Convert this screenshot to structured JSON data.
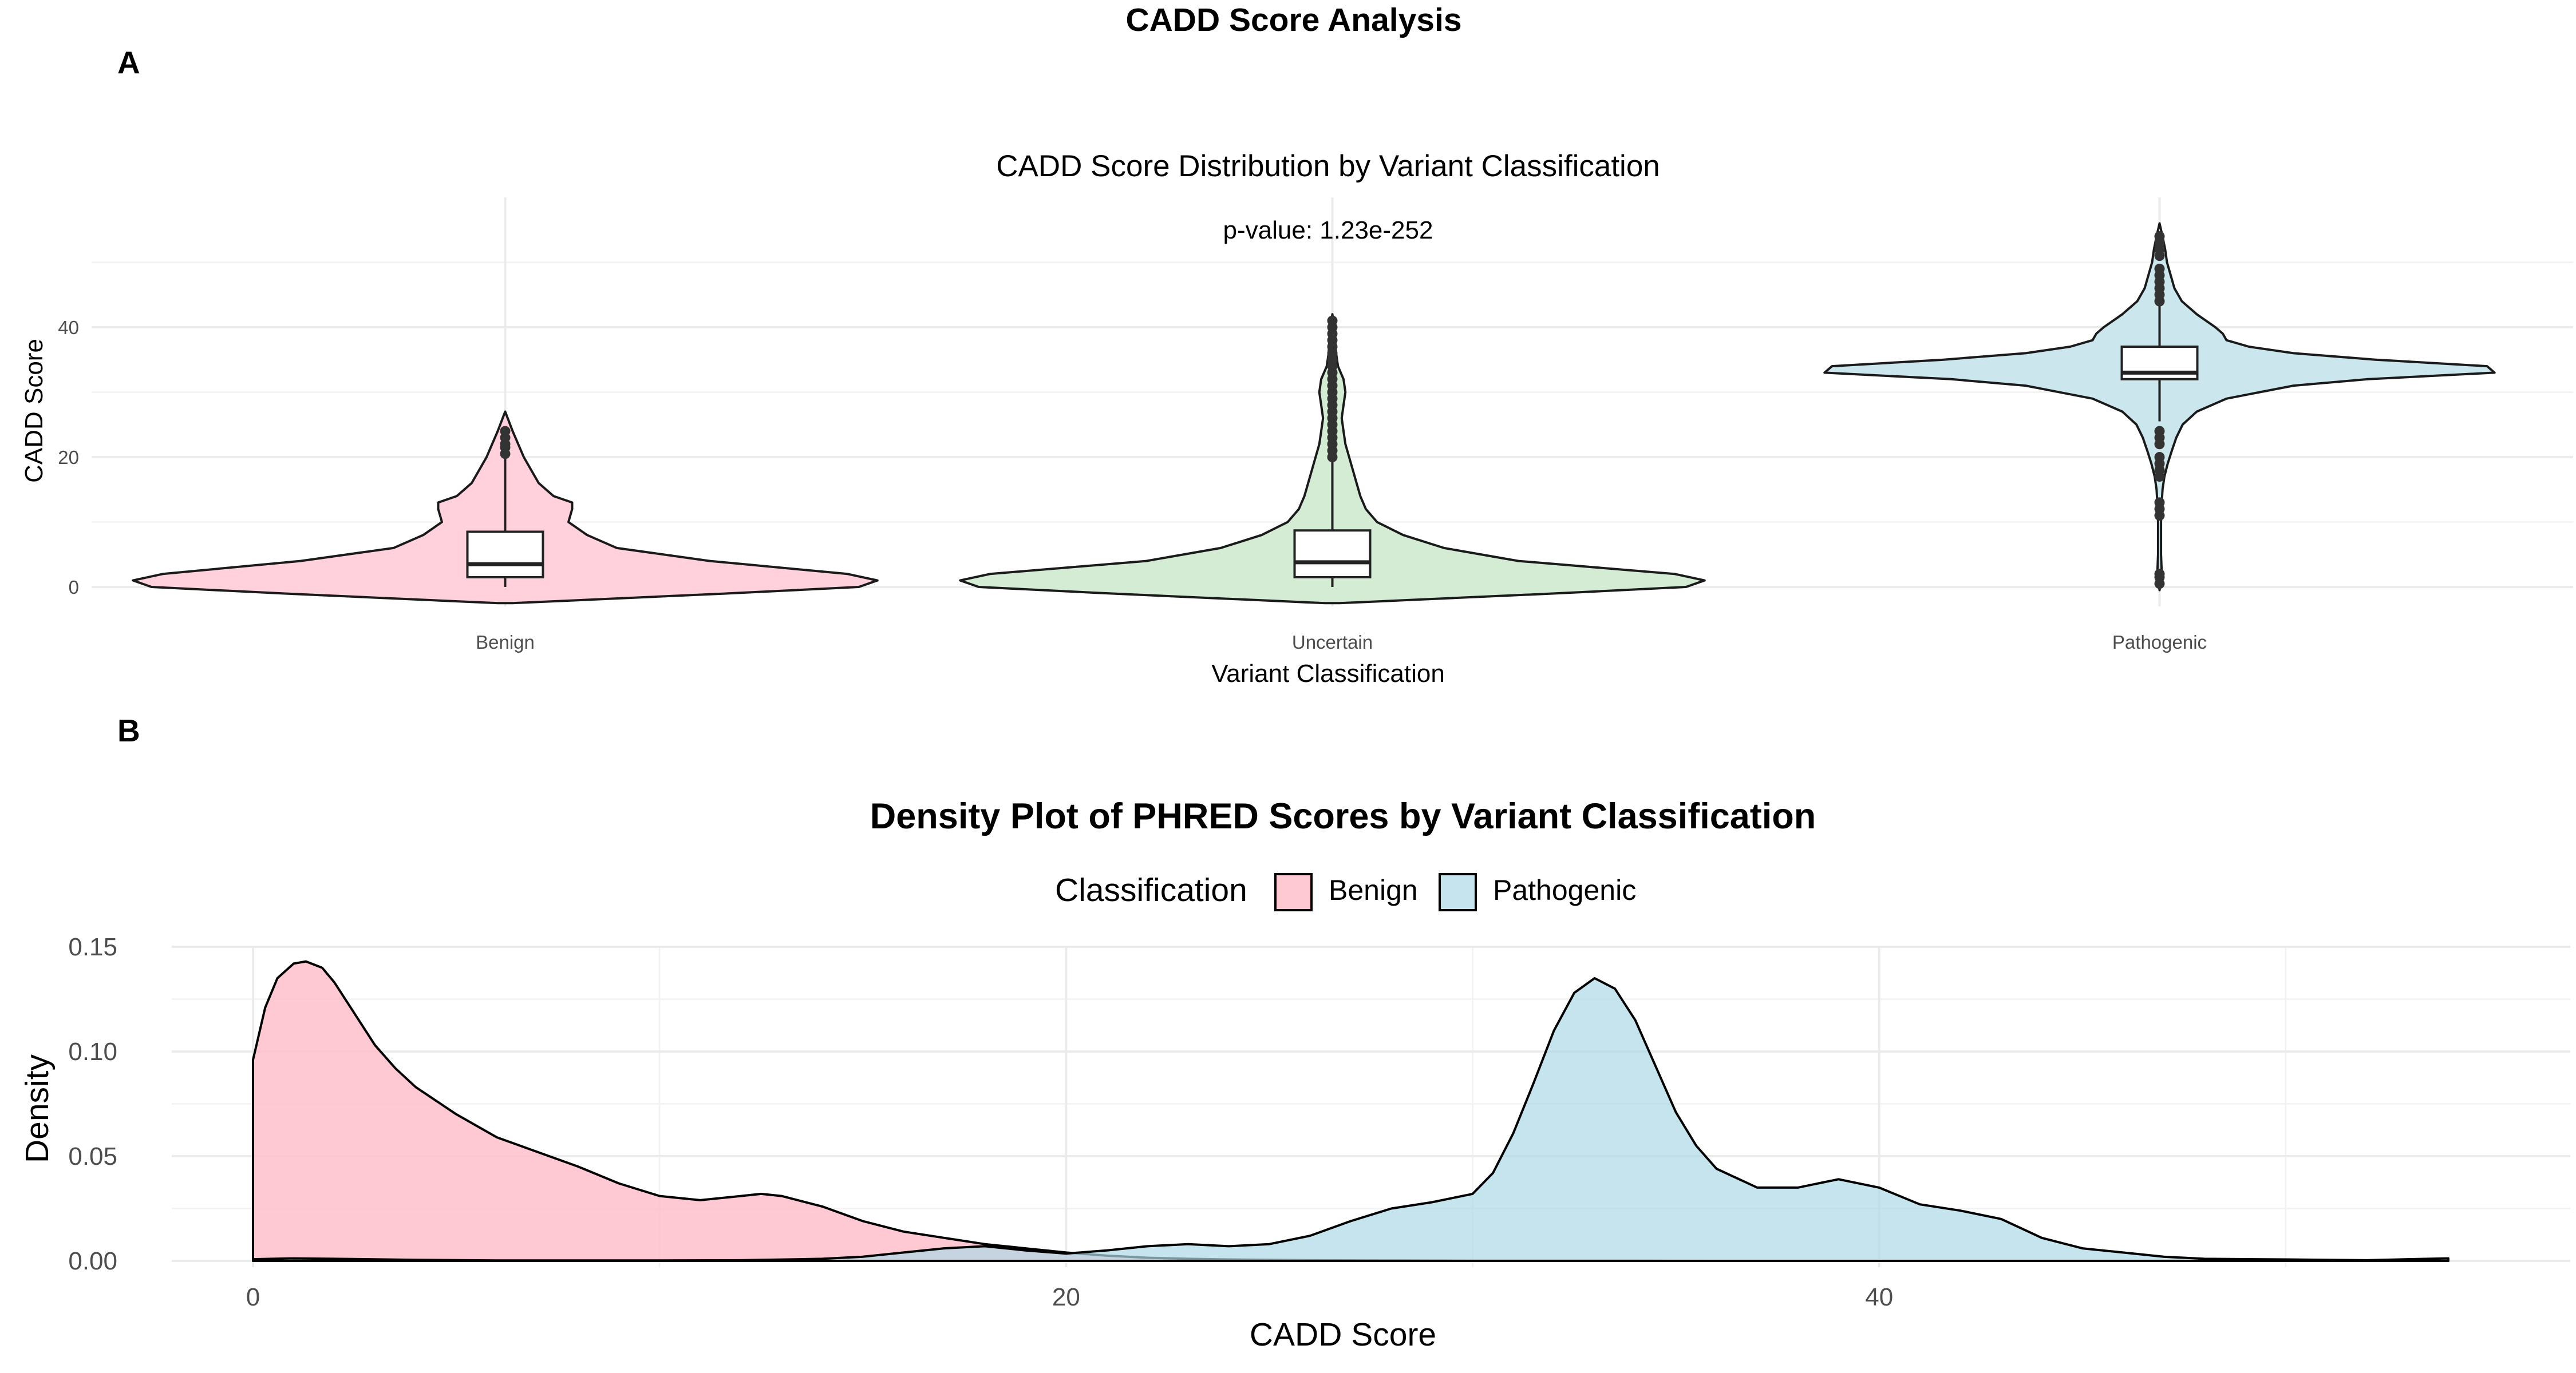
{
  "figure": {
    "title": "CADD Score Analysis",
    "panel_labels": [
      "A",
      "B"
    ]
  },
  "chart_data": [
    {
      "type": "violin",
      "panel": "A",
      "title": "CADD Score Distribution by Variant Classification",
      "annotation": "p-value: 1.23e-252",
      "xlabel": "Variant Classification",
      "ylabel": "CADD Score",
      "ylim": [
        -3,
        60
      ],
      "yticks": [
        0,
        20,
        40
      ],
      "grid": true,
      "categories": [
        "Benign",
        "Uncertain",
        "Pathogenic"
      ],
      "colors": [
        "#ffd1dc",
        "#d4ebd4",
        "#cce6ee"
      ],
      "boxplots": [
        {
          "q1": 1.5,
          "median": 3.5,
          "q3": 8.5,
          "whisker_low": 0,
          "whisker_high": 21
        },
        {
          "q1": 1.5,
          "median": 3.8,
          "q3": 8.7,
          "whisker_low": 0,
          "whisker_high": 19.5
        },
        {
          "q1": 32.0,
          "median": 33.0,
          "q3": 37.0,
          "whisker_low": 25.5,
          "whisker_high": 43.5
        }
      ],
      "outliers": [
        [
          20.5,
          21.5,
          22,
          23,
          24
        ],
        [
          20,
          21,
          22,
          23,
          24,
          25,
          26,
          27,
          28,
          29,
          30,
          31,
          32,
          33,
          34,
          35,
          36,
          37,
          38,
          39,
          40,
          41
        ],
        [
          0.5,
          1.5,
          2,
          11,
          12,
          13,
          17,
          18,
          19,
          20,
          22,
          23,
          24,
          44,
          45,
          46,
          47,
          48,
          49,
          51,
          52,
          53,
          54
        ]
      ],
      "violin_profiles": [
        {
          "y": [
            -2.5,
            -1,
            0,
            1,
            2,
            4,
            6,
            8,
            10,
            12,
            13,
            14,
            16,
            18,
            20,
            22,
            24,
            25.5,
            27
          ],
          "width": [
            0.02,
            0.6,
            0.95,
            1.0,
            0.92,
            0.55,
            0.3,
            0.22,
            0.17,
            0.18,
            0.18,
            0.13,
            0.09,
            0.07,
            0.05,
            0.035,
            0.02,
            0.01,
            0
          ]
        },
        {
          "y": [
            -2.5,
            -1,
            0,
            1,
            2,
            4,
            6,
            8,
            10,
            12,
            14,
            16,
            18,
            20,
            22,
            24,
            26,
            28,
            30,
            32,
            34,
            36,
            38,
            40,
            42
          ],
          "width": [
            0.02,
            0.6,
            0.95,
            1.0,
            0.92,
            0.5,
            0.3,
            0.19,
            0.12,
            0.09,
            0.075,
            0.065,
            0.055,
            0.045,
            0.035,
            0.03,
            0.025,
            0.03,
            0.035,
            0.03,
            0.015,
            0.01,
            0.008,
            0.005,
            0
          ]
        },
        {
          "y": [
            -0.5,
            2,
            5,
            10,
            13,
            15,
            17,
            19,
            21,
            23,
            25,
            27,
            29,
            31,
            32,
            33,
            34,
            35,
            36,
            37,
            38,
            39,
            40,
            42,
            44,
            46,
            48,
            50,
            52,
            54,
            56
          ],
          "width": [
            0,
            0.006,
            0.004,
            0.004,
            0.006,
            0.008,
            0.013,
            0.022,
            0.033,
            0.045,
            0.062,
            0.1,
            0.18,
            0.36,
            0.56,
            0.9,
            0.88,
            0.58,
            0.36,
            0.24,
            0.18,
            0.17,
            0.15,
            0.1,
            0.06,
            0.04,
            0.03,
            0.02,
            0.015,
            0.008,
            0
          ]
        }
      ]
    },
    {
      "type": "area",
      "panel": "B",
      "title": "Density Plot of PHRED Scores by Variant Classification",
      "xlabel": "CADD Score",
      "ylabel": "Density",
      "xlim": [
        -2,
        57
      ],
      "ylim": [
        -0.003,
        0.15
      ],
      "xticks": [
        0,
        20,
        40
      ],
      "yticks": [
        0.0,
        0.05,
        0.1,
        0.15
      ],
      "ytick_labels": [
        "0.00",
        "0.05",
        "0.10",
        "0.15"
      ],
      "grid": true,
      "legend": {
        "title": "Classification",
        "position": "top",
        "entries": [
          "Benign",
          "Pathogenic"
        ]
      },
      "series": [
        {
          "name": "Benign",
          "color": "#ffc0cb",
          "x": [
            0,
            0.3,
            0.6,
            1,
            1.3,
            1.7,
            2,
            2.5,
            3,
            3.5,
            4,
            5,
            6,
            7,
            8,
            9,
            10,
            11,
            12,
            12.5,
            13,
            14,
            15,
            16,
            17,
            18,
            19,
            20,
            21,
            22,
            23,
            24,
            26,
            28,
            30,
            32,
            34,
            36,
            38,
            40,
            42,
            44,
            46,
            48,
            50,
            52,
            54
          ],
          "values": [
            0.096,
            0.121,
            0.135,
            0.142,
            0.143,
            0.14,
            0.133,
            0.118,
            0.103,
            0.092,
            0.083,
            0.07,
            0.059,
            0.052,
            0.045,
            0.037,
            0.031,
            0.029,
            0.031,
            0.032,
            0.031,
            0.026,
            0.019,
            0.014,
            0.011,
            0.008,
            0.006,
            0.004,
            0.0025,
            0.0015,
            0.001,
            0.0007,
            0.0003,
            0.0002,
            0.0001,
            0.0001,
            0.0001,
            0,
            0,
            0,
            0,
            0,
            0,
            0,
            0,
            0,
            0
          ]
        },
        {
          "name": "Pathogenic",
          "color": "#add8e6",
          "x": [
            0,
            1,
            2,
            4,
            6,
            8,
            10,
            12,
            14,
            15,
            16,
            17,
            18,
            19,
            20,
            21,
            22,
            23,
            24,
            25,
            26,
            27,
            28,
            29,
            30,
            30.5,
            31,
            31.5,
            32,
            32.5,
            33,
            33.5,
            34,
            34.5,
            35,
            35.5,
            36,
            37,
            38,
            39,
            40,
            41,
            42,
            43,
            44,
            45,
            46,
            47,
            48,
            50,
            52,
            53,
            54
          ],
          "values": [
            0.0008,
            0.0012,
            0.001,
            0.0005,
            0.0002,
            0.0002,
            0.0002,
            0.0003,
            0.001,
            0.002,
            0.004,
            0.006,
            0.007,
            0.005,
            0.0035,
            0.005,
            0.007,
            0.008,
            0.007,
            0.008,
            0.012,
            0.019,
            0.025,
            0.028,
            0.032,
            0.042,
            0.061,
            0.085,
            0.11,
            0.128,
            0.135,
            0.13,
            0.115,
            0.093,
            0.071,
            0.055,
            0.044,
            0.035,
            0.035,
            0.039,
            0.035,
            0.027,
            0.024,
            0.02,
            0.011,
            0.006,
            0.004,
            0.002,
            0.001,
            0.0007,
            0.0003,
            0.0008,
            0.0012
          ]
        }
      ]
    }
  ]
}
